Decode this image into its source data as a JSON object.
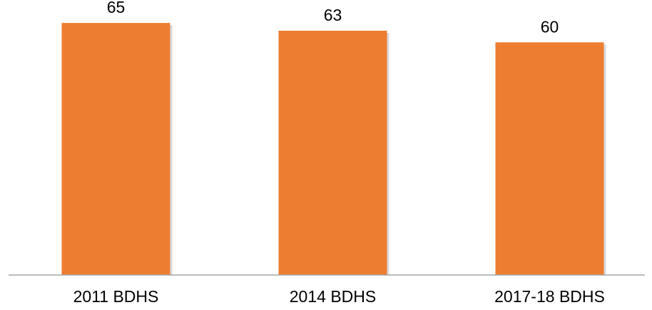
{
  "chart_data": {
    "type": "bar",
    "categories": [
      "2011 BDHS",
      "2014 BDHS",
      "2017-18 BDHS"
    ],
    "values": [
      65,
      63,
      60
    ],
    "title": "",
    "xlabel": "",
    "ylabel": "",
    "ylim": [
      0,
      70
    ],
    "grid": false,
    "legend": "none",
    "data_labels": true,
    "bar_color": "#ED7D31",
    "axis_color": "#A6A6A6"
  }
}
